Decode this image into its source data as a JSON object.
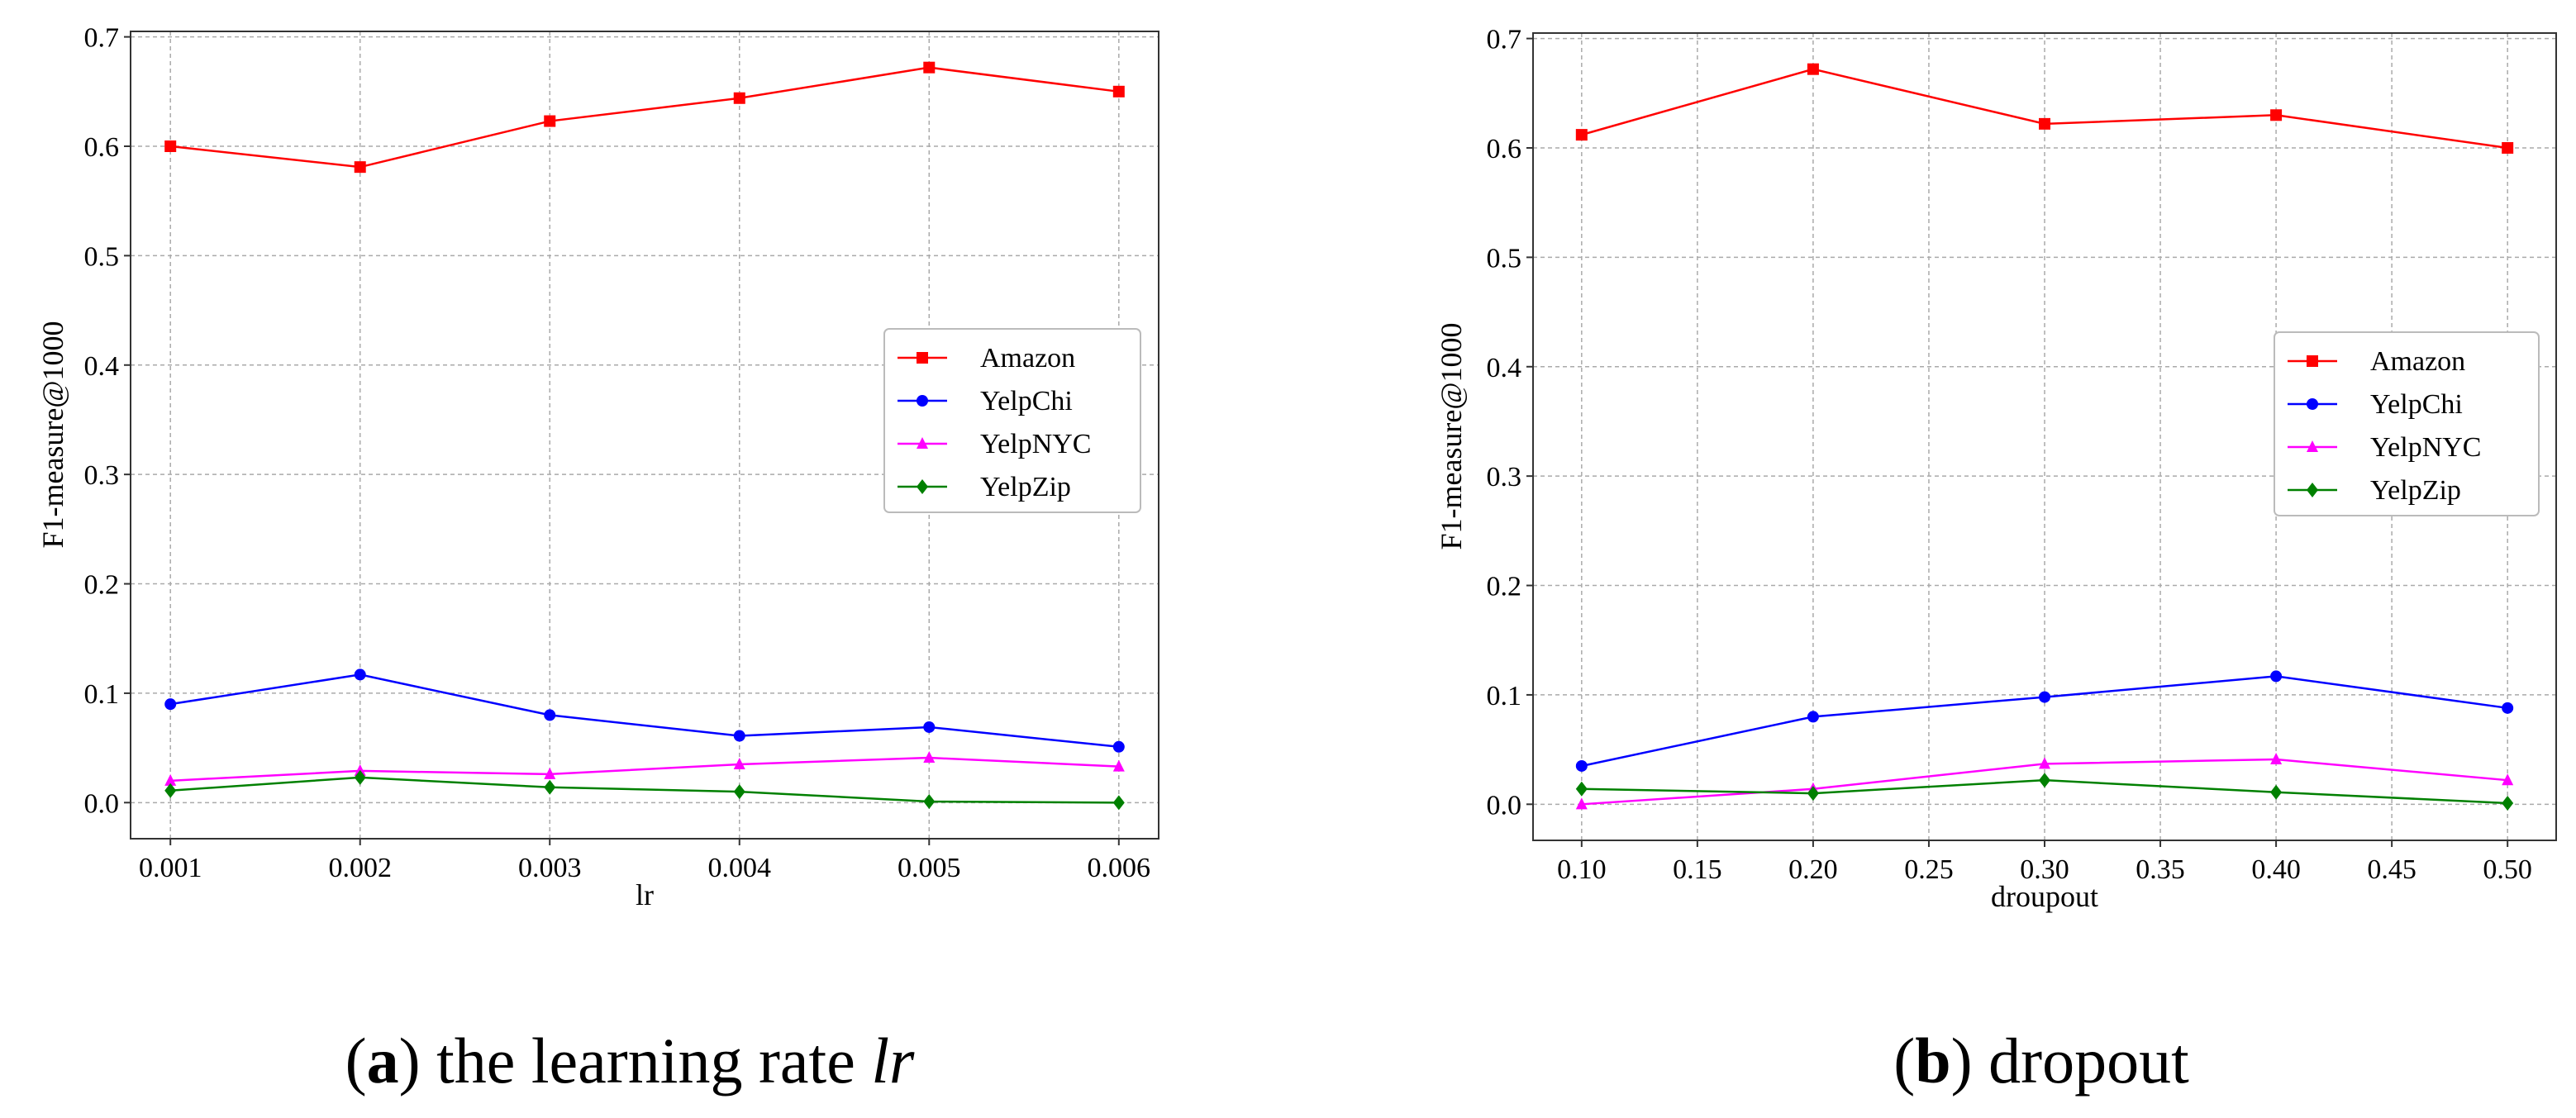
{
  "colors": {
    "Amazon": "#ff0000",
    "YelpChi": "#0000ff",
    "YelpNYC": "#ff00ff",
    "YelpZip": "#008000"
  },
  "chart_data": [
    {
      "type": "line",
      "caption": {
        "letter": "a",
        "text": "the learning rate",
        "italic": "lr"
      },
      "xlabel": "lr",
      "ylabel": "F1-measure@1000",
      "x_tick_labels": [
        "0.001",
        "0.002",
        "0.003",
        "0.004",
        "0.005",
        "0.006"
      ],
      "x": [
        0.001,
        0.002,
        0.003,
        0.004,
        0.005,
        0.006
      ],
      "xlim": [
        0.00079,
        0.00621
      ],
      "ylim": [
        -0.033,
        0.705
      ],
      "y_ticks": [
        "0.0",
        "0.1",
        "0.2",
        "0.3",
        "0.4",
        "0.5",
        "0.6",
        "0.7"
      ],
      "grid": true,
      "legend_position": "center-right",
      "series": [
        {
          "name": "Amazon",
          "marker": "square",
          "values": [
            0.6,
            0.581,
            0.623,
            0.644,
            0.672,
            0.65
          ]
        },
        {
          "name": "YelpChi",
          "marker": "circle",
          "values": [
            0.09,
            0.117,
            0.08,
            0.061,
            0.069,
            0.051
          ]
        },
        {
          "name": "YelpNYC",
          "marker": "triangle",
          "values": [
            0.02,
            0.029,
            0.026,
            0.035,
            0.041,
            0.033
          ]
        },
        {
          "name": "YelpZip",
          "marker": "diamond",
          "values": [
            0.011,
            0.023,
            0.014,
            0.01,
            0.001,
            0.0
          ]
        }
      ]
    },
    {
      "type": "line",
      "caption": {
        "letter": "b",
        "text": "dropout",
        "italic": ""
      },
      "xlabel": "droupout",
      "ylabel": "F1-measure@1000",
      "x_tick_labels": [
        "0.10",
        "0.15",
        "0.20",
        "0.25",
        "0.30",
        "0.35",
        "0.40",
        "0.45",
        "0.50"
      ],
      "x": [
        0.1,
        0.2,
        0.3,
        0.4,
        0.5
      ],
      "xlim": [
        0.079,
        0.521
      ],
      "ylim": [
        -0.033,
        0.705
      ],
      "y_ticks": [
        "0.0",
        "0.1",
        "0.2",
        "0.3",
        "0.4",
        "0.5",
        "0.6",
        "0.7"
      ],
      "grid": true,
      "legend_position": "center-right",
      "series": [
        {
          "name": "Amazon",
          "marker": "square",
          "values": [
            0.612,
            0.672,
            0.622,
            0.63,
            0.6
          ]
        },
        {
          "name": "YelpChi",
          "marker": "circle",
          "values": [
            0.035,
            0.08,
            0.098,
            0.117,
            0.088
          ]
        },
        {
          "name": "YelpNYC",
          "marker": "triangle",
          "values": [
            0.0,
            0.014,
            0.037,
            0.041,
            0.022
          ]
        },
        {
          "name": "YelpZip",
          "marker": "diamond",
          "values": [
            0.014,
            0.01,
            0.022,
            0.011,
            0.001
          ]
        }
      ]
    }
  ]
}
